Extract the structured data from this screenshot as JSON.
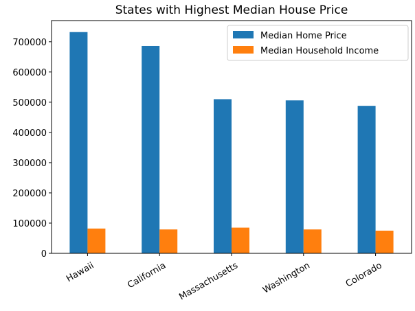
{
  "chart_data": {
    "type": "bar",
    "title": "States with Highest Median House Price",
    "xlabel": "",
    "ylabel": "",
    "categories": [
      "Hawaii",
      "California",
      "Massachusetts",
      "Washington",
      "Colorado"
    ],
    "series": [
      {
        "name": "Median Home Price",
        "color": "#1f77b4",
        "values": [
          732000,
          686000,
          510000,
          506000,
          488000
        ]
      },
      {
        "name": "Median Household Income",
        "color": "#ff7f0e",
        "values": [
          82000,
          79000,
          85000,
          79000,
          75000
        ]
      }
    ],
    "yticks": [
      0,
      100000,
      200000,
      300000,
      400000,
      500000,
      600000,
      700000
    ],
    "ylim": [
      0,
      770000
    ],
    "grid": false,
    "legend": "top-right"
  }
}
